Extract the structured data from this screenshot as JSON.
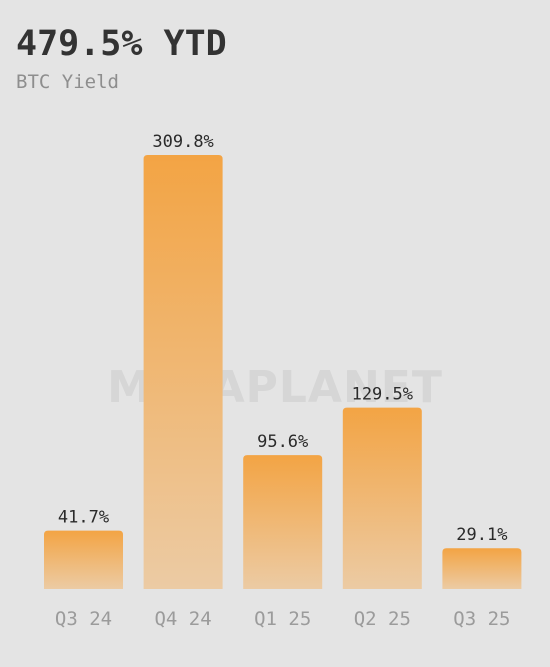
{
  "header": {
    "headline": "479.5% YTD",
    "subtitle": "BTC Yield"
  },
  "watermark": "METAPLANET",
  "colors": {
    "background": "#e4e4e4",
    "bar_top": "#f3a444",
    "bar_bottom": "#eccba4",
    "label_text": "#2a2a2a",
    "tick_text": "#9b9b9b"
  },
  "chart_data": {
    "type": "bar",
    "title": "479.5% YTD",
    "subtitle": "BTC Yield",
    "categories": [
      "Q3 24",
      "Q4 24",
      "Q1 25",
      "Q2 25",
      "Q3 25"
    ],
    "values": [
      41.7,
      309.8,
      95.6,
      129.5,
      29.1
    ],
    "data_labels": [
      "41.7%",
      "309.8%",
      "95.6%",
      "129.5%",
      "29.1%"
    ],
    "xlabel": "",
    "ylabel": "",
    "ylim": [
      0,
      309.8
    ],
    "grid": false,
    "legend": "none"
  }
}
